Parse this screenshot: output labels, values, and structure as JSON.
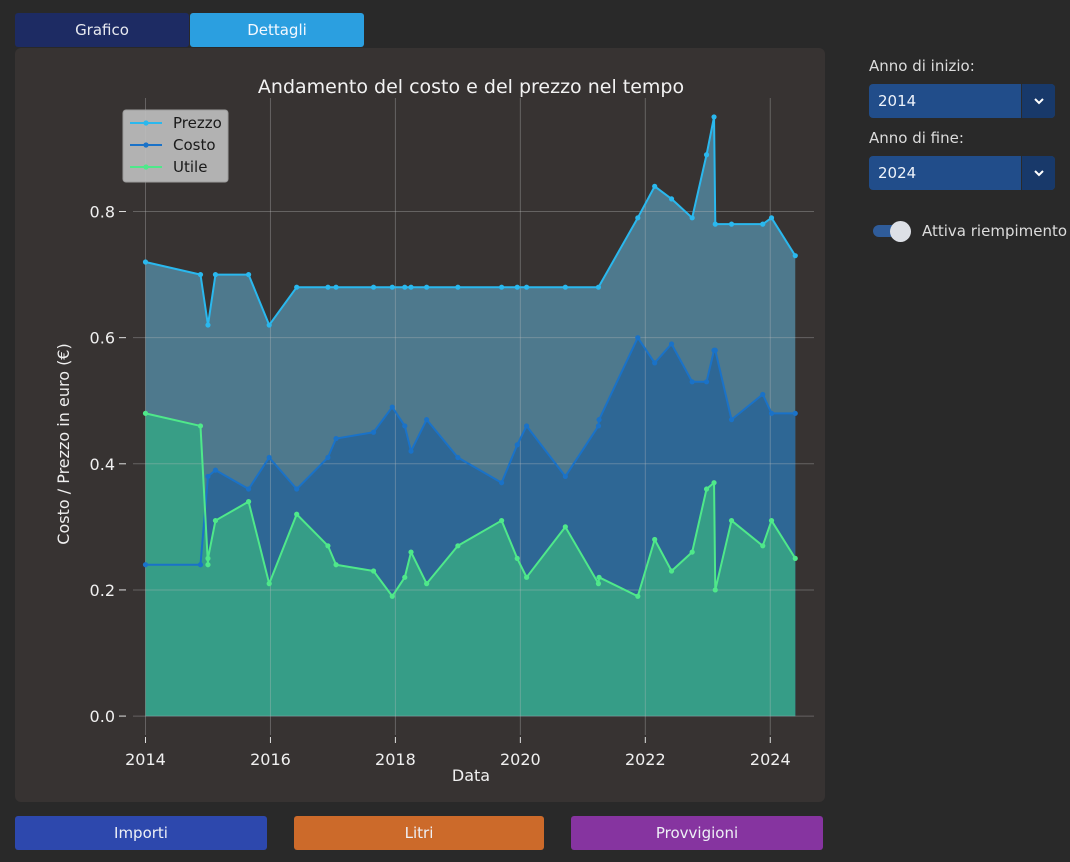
{
  "tabs": {
    "grafico": "Grafico",
    "dettagli": "Dettagli"
  },
  "controls": {
    "start_label": "Anno di inizio:",
    "start_value": "2014",
    "end_label": "Anno di fine:",
    "end_value": "2024",
    "fill_toggle_label": "Attiva riempimento",
    "fill_toggle_on": true
  },
  "bottom_buttons": {
    "importi": "Importi",
    "litri": "Litri",
    "provvigioni": "Provvigioni"
  },
  "colors": {
    "prezzo": "#2ab8ee",
    "costo": "#1a72c8",
    "utile": "#4fe88a",
    "prezzo_fill": "#4f7d92",
    "costo_fill": "#2c6696",
    "utile_fill": "#37a086"
  },
  "chart_data": {
    "type": "area",
    "title": "Andamento del costo e del prezzo nel tempo",
    "xlabel": "Data",
    "ylabel": "Costo / Prezzo in euro (€)",
    "xlim": [
      2013.8,
      2024.7
    ],
    "ylim": [
      -0.03,
      0.98
    ],
    "xticks": [
      2014,
      2016,
      2018,
      2020,
      2022,
      2024
    ],
    "yticks": [
      0.0,
      0.2,
      0.4,
      0.6,
      0.8
    ],
    "grid": true,
    "legend_position": "top-left",
    "series": [
      {
        "name": "Prezzo",
        "points": [
          [
            2014.0,
            0.72
          ],
          [
            2014.88,
            0.7
          ],
          [
            2015.0,
            0.62
          ],
          [
            2015.12,
            0.7
          ],
          [
            2015.65,
            0.7
          ],
          [
            2015.98,
            0.62
          ],
          [
            2016.42,
            0.68
          ],
          [
            2016.92,
            0.68
          ],
          [
            2017.05,
            0.68
          ],
          [
            2017.65,
            0.68
          ],
          [
            2017.95,
            0.68
          ],
          [
            2018.15,
            0.68
          ],
          [
            2018.25,
            0.68
          ],
          [
            2018.5,
            0.68
          ],
          [
            2019.0,
            0.68
          ],
          [
            2019.7,
            0.68
          ],
          [
            2019.95,
            0.68
          ],
          [
            2020.1,
            0.68
          ],
          [
            2020.72,
            0.68
          ],
          [
            2021.25,
            0.68
          ],
          [
            2021.88,
            0.79
          ],
          [
            2022.15,
            0.84
          ],
          [
            2022.42,
            0.82
          ],
          [
            2022.75,
            0.79
          ],
          [
            2022.98,
            0.89
          ],
          [
            2023.1,
            0.95
          ],
          [
            2023.12,
            0.78
          ],
          [
            2023.38,
            0.78
          ],
          [
            2023.88,
            0.78
          ],
          [
            2024.02,
            0.79
          ],
          [
            2024.4,
            0.73
          ]
        ]
      },
      {
        "name": "Costo",
        "points": [
          [
            2014.0,
            0.24
          ],
          [
            2014.88,
            0.24
          ],
          [
            2015.0,
            0.38
          ],
          [
            2015.12,
            0.39
          ],
          [
            2015.65,
            0.36
          ],
          [
            2015.98,
            0.41
          ],
          [
            2016.42,
            0.36
          ],
          [
            2016.92,
            0.41
          ],
          [
            2017.05,
            0.44
          ],
          [
            2017.65,
            0.45
          ],
          [
            2017.95,
            0.49
          ],
          [
            2018.15,
            0.46
          ],
          [
            2018.25,
            0.42
          ],
          [
            2018.5,
            0.47
          ],
          [
            2019.0,
            0.41
          ],
          [
            2019.7,
            0.37
          ],
          [
            2019.95,
            0.43
          ],
          [
            2020.1,
            0.46
          ],
          [
            2020.72,
            0.38
          ],
          [
            2021.25,
            0.46
          ],
          [
            2021.26,
            0.47
          ],
          [
            2021.88,
            0.6
          ],
          [
            2022.15,
            0.56
          ],
          [
            2022.42,
            0.59
          ],
          [
            2022.75,
            0.53
          ],
          [
            2022.98,
            0.53
          ],
          [
            2023.1,
            0.58
          ],
          [
            2023.12,
            0.58
          ],
          [
            2023.38,
            0.47
          ],
          [
            2023.88,
            0.51
          ],
          [
            2024.02,
            0.48
          ],
          [
            2024.4,
            0.48
          ]
        ]
      },
      {
        "name": "Utile",
        "points": [
          [
            2014.0,
            0.48
          ],
          [
            2014.88,
            0.46
          ],
          [
            2015.0,
            0.24
          ],
          [
            2015.0,
            0.25
          ],
          [
            2015.12,
            0.31
          ],
          [
            2015.65,
            0.34
          ],
          [
            2015.98,
            0.21
          ],
          [
            2016.42,
            0.32
          ],
          [
            2016.92,
            0.27
          ],
          [
            2017.05,
            0.24
          ],
          [
            2017.65,
            0.23
          ],
          [
            2017.95,
            0.19
          ],
          [
            2018.15,
            0.22
          ],
          [
            2018.25,
            0.26
          ],
          [
            2018.5,
            0.21
          ],
          [
            2019.0,
            0.27
          ],
          [
            2019.7,
            0.31
          ],
          [
            2019.95,
            0.25
          ],
          [
            2020.1,
            0.22
          ],
          [
            2020.72,
            0.3
          ],
          [
            2021.25,
            0.21
          ],
          [
            2021.26,
            0.22
          ],
          [
            2021.88,
            0.19
          ],
          [
            2022.15,
            0.28
          ],
          [
            2022.42,
            0.23
          ],
          [
            2022.75,
            0.26
          ],
          [
            2022.98,
            0.36
          ],
          [
            2023.1,
            0.37
          ],
          [
            2023.12,
            0.2
          ],
          [
            2023.38,
            0.31
          ],
          [
            2023.88,
            0.27
          ],
          [
            2024.02,
            0.31
          ],
          [
            2024.4,
            0.25
          ]
        ]
      }
    ]
  }
}
